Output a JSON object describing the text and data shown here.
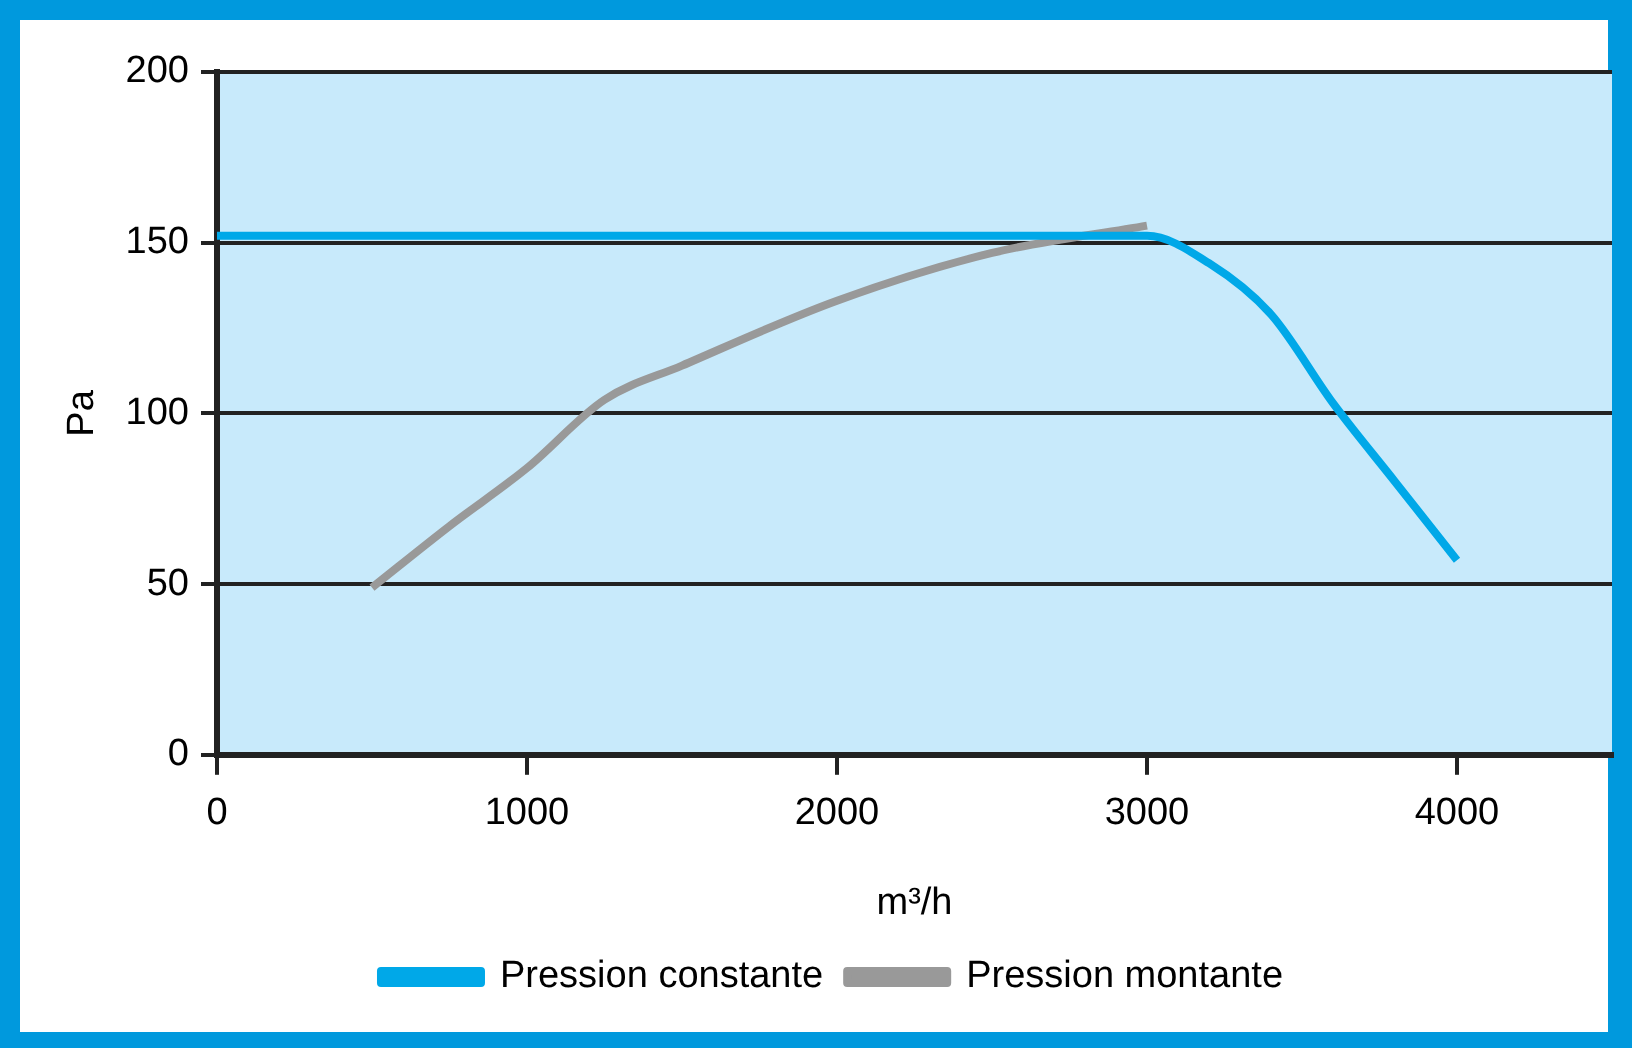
{
  "chart_data": {
    "type": "line",
    "xlabel": "m³/h",
    "ylabel": "Pa",
    "xlim": [
      0,
      4500
    ],
    "xticks": [
      0,
      1000,
      2000,
      3000,
      4000
    ],
    "ylim": [
      0,
      200
    ],
    "yticks": [
      0,
      50,
      100,
      150,
      200
    ],
    "grid": "y",
    "legend": "bottom",
    "marker": "none",
    "line_style": "solid",
    "series": [
      {
        "name": "Pression constante",
        "color": "#00a8e8",
        "x": [
          0,
          3000,
          3200,
          3400,
          3600,
          3800,
          4000
        ],
        "values": [
          152,
          152,
          144,
          129,
          103,
          80,
          57
        ]
      },
      {
        "name": "Pression montante",
        "color": "#999999",
        "x": [
          500,
          750,
          1000,
          1250,
          1500,
          2000,
          2500,
          3000
        ],
        "values": [
          49,
          67,
          84,
          104,
          114,
          133,
          147,
          155
        ]
      }
    ]
  }
}
